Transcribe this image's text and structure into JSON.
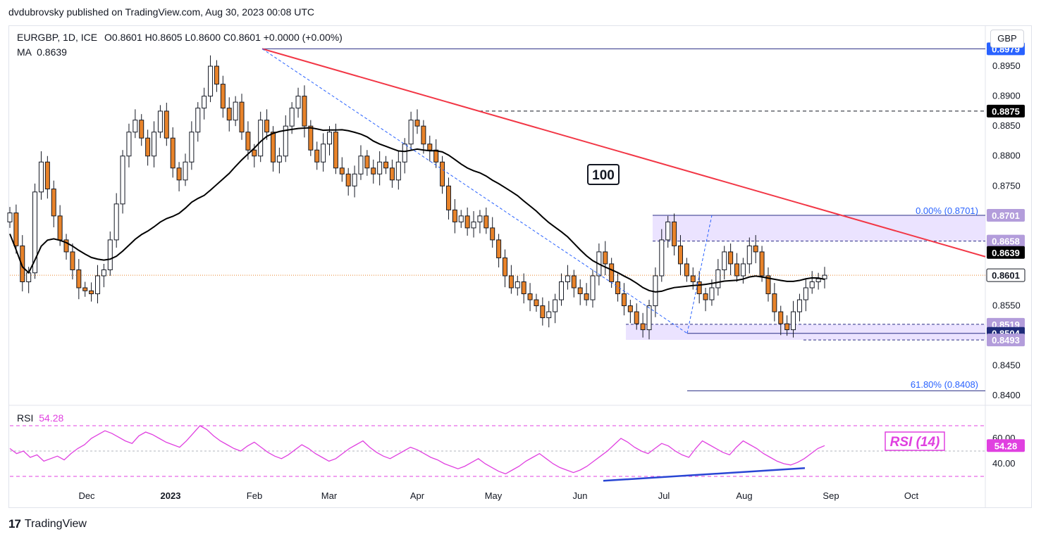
{
  "header": {
    "publisher_line": "dvdubrovsky published on TradingView.com, Aug 30, 2023 00:08 UTC"
  },
  "legend": {
    "symbol": "EURGBP, 1D, ICE",
    "ohlc": "O0.8601  H0.8605  L0.8600  C0.8601  +0.0000 (+0.00%)",
    "ma_label": "MA",
    "ma_value": "0.8639"
  },
  "currency_button": "GBP",
  "rsi_legend": {
    "label": "RSI",
    "value": "54.28"
  },
  "annotations": {
    "ma_period_box": "100",
    "rsi_box": "RSI (14)",
    "fib_top": "0.00% (0.8701)",
    "fib_bottom": "61.80% (0.8408)"
  },
  "footer": {
    "logo": "17",
    "brand": "TradingView"
  },
  "colors": {
    "up_candle": "#ffffff",
    "down_candle": "#e8832a",
    "candle_outline": "#131722",
    "ma_line": "#000000",
    "trendline": "#f23645",
    "rsi_line": "#e040e0",
    "fib_line": "#2962ff",
    "zone_fill": "#e6dcff"
  },
  "chart_data": [
    {
      "type": "candlestick",
      "title": "",
      "y_axis": {
        "ticks": [
          "0.8950",
          "0.8900",
          "0.8850",
          "0.8800",
          "0.8750",
          "0.8550",
          "0.8450",
          "0.8400"
        ],
        "ylim": [
          0.8385,
          0.899
        ]
      },
      "x_axis": {
        "ticks": [
          "Dec",
          "2023",
          "Feb",
          "Mar",
          "Apr",
          "May",
          "Jun",
          "Jul",
          "Aug",
          "Sep",
          "Oct"
        ]
      },
      "price_labels": [
        {
          "value": "0.8979",
          "style": "blue"
        },
        {
          "value": "0.8875",
          "style": "black"
        },
        {
          "value": "0.8701",
          "style": "purple"
        },
        {
          "value": "0.8658",
          "style": "purple"
        },
        {
          "value": "0.8639",
          "style": "black"
        },
        {
          "value": "0.8601",
          "style": "white"
        },
        {
          "value": "0.8519",
          "style": "purple"
        },
        {
          "value": "0.8504",
          "style": "navy"
        },
        {
          "value": "0.8493",
          "style": "purple"
        }
      ],
      "moving_average": {
        "period": 100,
        "last": 0.8639
      },
      "close_series": [
        0.8705,
        0.865,
        0.859,
        0.8605,
        0.874,
        0.879,
        0.8745,
        0.87,
        0.866,
        0.864,
        0.861,
        0.858,
        0.8575,
        0.857,
        0.86,
        0.861,
        0.866,
        0.872,
        0.88,
        0.884,
        0.886,
        0.883,
        0.88,
        0.884,
        0.8875,
        0.883,
        0.878,
        0.876,
        0.879,
        0.884,
        0.888,
        0.89,
        0.895,
        0.892,
        0.888,
        0.886,
        0.889,
        0.884,
        0.881,
        0.88,
        0.886,
        0.884,
        0.879,
        0.88,
        0.885,
        0.888,
        0.89,
        0.885,
        0.881,
        0.879,
        0.882,
        0.884,
        0.878,
        0.877,
        0.875,
        0.877,
        0.88,
        0.878,
        0.877,
        0.879,
        0.878,
        0.876,
        0.879,
        0.882,
        0.886,
        0.885,
        0.882,
        0.881,
        0.879,
        0.875,
        0.871,
        0.869,
        0.87,
        0.868,
        0.869,
        0.87,
        0.868,
        0.866,
        0.863,
        0.86,
        0.858,
        0.859,
        0.857,
        0.856,
        0.855,
        0.853,
        0.854,
        0.856,
        0.859,
        0.86,
        0.858,
        0.857,
        0.856,
        0.86,
        0.864,
        0.862,
        0.859,
        0.857,
        0.855,
        0.854,
        0.852,
        0.851,
        0.855,
        0.86,
        0.866,
        0.869,
        0.865,
        0.862,
        0.86,
        0.859,
        0.857,
        0.856,
        0.858,
        0.861,
        0.864,
        0.862,
        0.86,
        0.862,
        0.865,
        0.864,
        0.86,
        0.857,
        0.854,
        0.852,
        0.851,
        0.854,
        0.856,
        0.858,
        0.859,
        0.8595,
        0.8601
      ]
    },
    {
      "type": "line",
      "title": "",
      "series": [
        {
          "name": "RSI",
          "values": [
            52,
            48,
            50,
            45,
            47,
            42,
            44,
            46,
            43,
            48,
            52,
            55,
            60,
            63,
            66,
            64,
            61,
            58,
            56,
            62,
            65,
            63,
            60,
            57,
            55,
            53,
            58,
            64,
            70,
            67,
            62,
            58,
            55,
            52,
            50,
            54,
            57,
            53,
            49,
            46,
            44,
            47,
            51,
            55,
            52,
            48,
            45,
            42,
            44,
            48,
            52,
            55,
            58,
            53,
            49,
            46,
            44,
            47,
            50,
            53,
            51,
            48,
            45,
            43,
            40,
            38,
            36,
            38,
            41,
            44,
            40,
            37,
            34,
            32,
            35,
            38,
            42,
            45,
            48,
            44,
            40,
            37,
            35,
            33,
            35,
            38,
            42,
            46,
            50,
            55,
            60,
            57,
            53,
            50,
            48,
            52,
            56,
            54,
            50,
            47,
            45,
            52,
            58,
            55,
            52,
            49,
            47,
            53,
            58,
            55,
            52,
            48,
            45,
            42,
            40,
            39,
            41,
            44,
            48,
            52,
            54.28
          ]
        }
      ],
      "levels": [
        70,
        50,
        30
      ],
      "y_ticks": [
        "60.00",
        "40.00"
      ],
      "ylim": [
        25,
        85
      ]
    }
  ]
}
